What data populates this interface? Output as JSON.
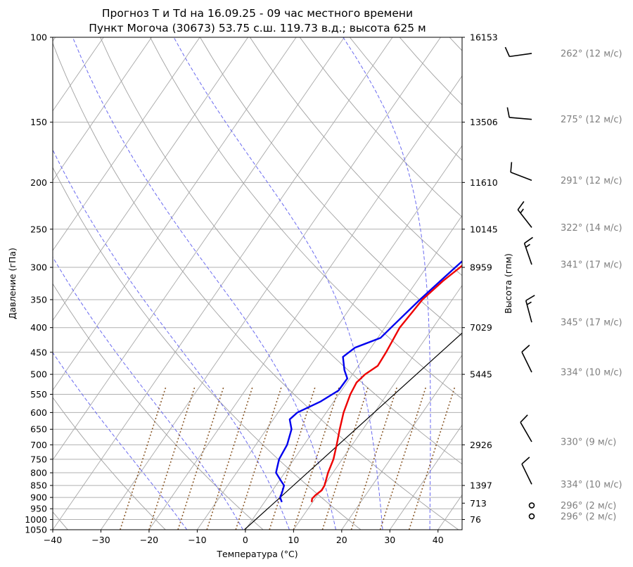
{
  "chart_data": {
    "type": "line",
    "title": "Прогноз T и Td на 16.09.25 - 09 час местного времени",
    "subtitle": "Пункт Могоча (30673) 53.75 с.ш. 119.73 в.д.; высота 625 м",
    "xlabel": "Температура (°C)",
    "ylabel": "Давление (гПа)",
    "y2label": "Высота (гпм)",
    "xlim": [
      -40,
      45
    ],
    "ylim": [
      1050,
      100
    ],
    "yscale": "log",
    "grid": true,
    "x_ticks": [
      "−40",
      "−30",
      "−20",
      "−10",
      "0",
      "10",
      "20",
      "30",
      "40"
    ],
    "y_ticks": [
      "100",
      "150",
      "200",
      "250",
      "300",
      "350",
      "400",
      "450",
      "500",
      "550",
      "600",
      "650",
      "700",
      "750",
      "800",
      "850",
      "900",
      "950",
      "1000",
      "1050"
    ],
    "height_labels": [
      {
        "p": 100,
        "label": "16153"
      },
      {
        "p": 150,
        "label": "13506"
      },
      {
        "p": 200,
        "label": "11610"
      },
      {
        "p": 250,
        "label": "10145"
      },
      {
        "p": 300,
        "label": "8959"
      },
      {
        "p": 400,
        "label": "7029"
      },
      {
        "p": 500,
        "label": "5445"
      },
      {
        "p": 700,
        "label": "2926"
      },
      {
        "p": 850,
        "label": "1397"
      },
      {
        "p": 925,
        "label": "713"
      },
      {
        "p": 1000,
        "label": "76"
      }
    ],
    "series": [
      {
        "name": "T",
        "color": "#ee0000",
        "points": [
          [
            920,
            9.8
          ],
          [
            905,
            9.4
          ],
          [
            890,
            9.6
          ],
          [
            870,
            10.2
          ],
          [
            850,
            10.1
          ],
          [
            800,
            9.0
          ],
          [
            750,
            8.2
          ],
          [
            700,
            6.8
          ],
          [
            650,
            5.2
          ],
          [
            600,
            3.6
          ],
          [
            550,
            2.4
          ],
          [
            520,
            2.0
          ],
          [
            500,
            2.6
          ],
          [
            480,
            4.0
          ],
          [
            450,
            3.8
          ],
          [
            400,
            3.1
          ],
          [
            350,
            3.8
          ],
          [
            320,
            5.4
          ],
          [
            300,
            7.0
          ],
          [
            280,
            8.6
          ],
          [
            270,
            10.3
          ],
          [
            250,
            15.3
          ],
          [
            240,
            16.3
          ],
          [
            230,
            17.5
          ],
          [
            220,
            19.4
          ],
          [
            200,
            22.8
          ],
          [
            180,
            26.8
          ],
          [
            160,
            31.0
          ],
          [
            140,
            34.5
          ],
          [
            130,
            36.0
          ],
          [
            115,
            37.3
          ],
          [
            108,
            39.0
          ]
        ]
      },
      {
        "name": "Td",
        "color": "#0000ee",
        "points": [
          [
            920,
            3.6
          ],
          [
            900,
            2.6
          ],
          [
            880,
            2.3
          ],
          [
            850,
            1.7
          ],
          [
            830,
            0.3
          ],
          [
            800,
            -1.8
          ],
          [
            750,
            -3.1
          ],
          [
            700,
            -3.5
          ],
          [
            650,
            -4.8
          ],
          [
            620,
            -6.6
          ],
          [
            600,
            -6.0
          ],
          [
            570,
            -2.8
          ],
          [
            540,
            -0.6
          ],
          [
            510,
            -0.5
          ],
          [
            490,
            -2.3
          ],
          [
            460,
            -4.5
          ],
          [
            440,
            -3.3
          ],
          [
            420,
            0.6
          ],
          [
            400,
            1.3
          ],
          [
            350,
            3.3
          ],
          [
            300,
            6.0
          ],
          [
            280,
            7.3
          ],
          [
            260,
            8.0
          ],
          [
            250,
            9.3
          ],
          [
            235,
            10.6
          ],
          [
            220,
            12.2
          ],
          [
            200,
            14.6
          ],
          [
            180,
            18.0
          ],
          [
            160,
            20.8
          ],
          [
            150,
            21.9
          ],
          [
            140,
            22.6
          ],
          [
            130,
            23.3
          ],
          [
            120,
            24.5
          ],
          [
            110,
            24.8
          ],
          [
            100,
            24.2
          ]
        ]
      }
    ],
    "special_line": [
      [
        1050,
        -0.2
      ],
      [
        400,
        17.3
      ]
    ],
    "dry_adiabats_theta_K": [
      233,
      253,
      273,
      293,
      313,
      333,
      353,
      373,
      393,
      413,
      433,
      453,
      473
    ],
    "moist_adiabats_theta_K": [
      258,
      270,
      280,
      290,
      300,
      310
    ],
    "mixing_ratio_lines_degC_at_1050": [
      -26,
      -20,
      -14,
      -8,
      -2,
      5,
      10,
      16,
      22,
      28,
      34
    ],
    "wind_barbs": [
      {
        "p": 108,
        "dir": 262,
        "speed": 12,
        "label": "262° (12 м/с)"
      },
      {
        "p": 148,
        "dir": 275,
        "speed": 12,
        "label": "275° (12 м/с)"
      },
      {
        "p": 198,
        "dir": 291,
        "speed": 12,
        "label": "291° (12 м/с)"
      },
      {
        "p": 248,
        "dir": 322,
        "speed": 14,
        "label": "322° (14 м/с)"
      },
      {
        "p": 296,
        "dir": 341,
        "speed": 17,
        "label": "341° (17 м/с)"
      },
      {
        "p": 390,
        "dir": 345,
        "speed": 17,
        "label": "345° (17 м/с)"
      },
      {
        "p": 495,
        "dir": 334,
        "speed": 10,
        "label": "334° (10 м/с)"
      },
      {
        "p": 690,
        "dir": 330,
        "speed": 9,
        "label": "330° (9 м/с)"
      },
      {
        "p": 845,
        "dir": 334,
        "speed": 10,
        "label": "334° (10 м/с)"
      },
      {
        "p": 935,
        "dir": 296,
        "speed": 2,
        "label": "296° (2 м/с)"
      },
      {
        "p": 985,
        "dir": 296,
        "speed": 2,
        "label": "296° (2 м/с)"
      }
    ]
  }
}
